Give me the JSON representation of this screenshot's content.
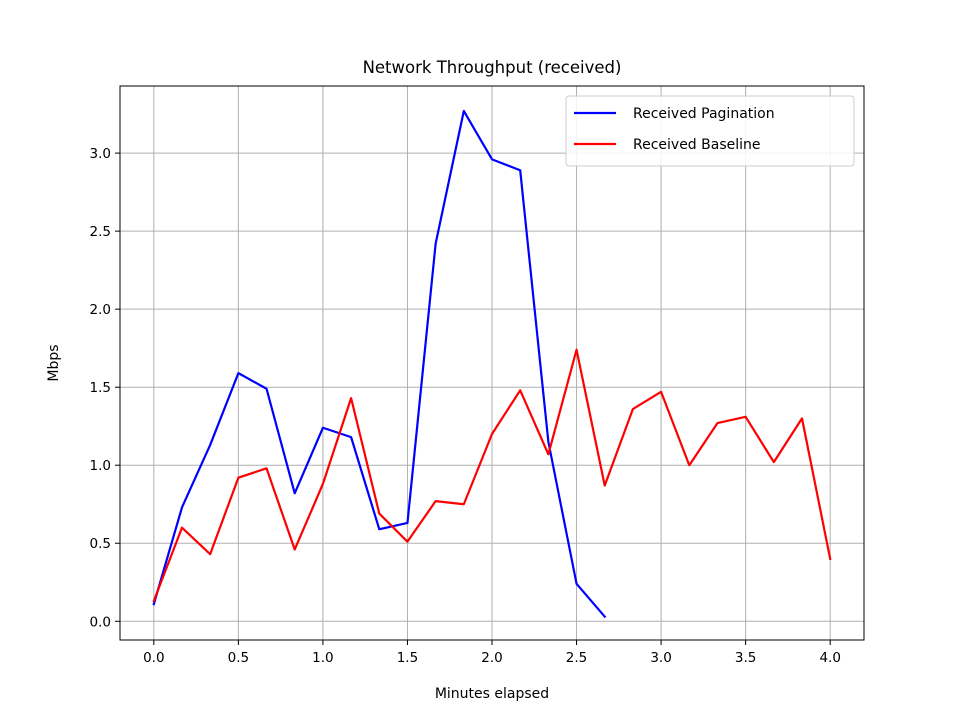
{
  "chart_data": {
    "type": "line",
    "title": "Network Throughput (received)",
    "xlabel": "Minutes elapsed",
    "ylabel": "Mbps",
    "xlim": [
      -0.2,
      4.2
    ],
    "ylim": [
      -0.12,
      3.43
    ],
    "xticks": [
      0.0,
      0.5,
      1.0,
      1.5,
      2.0,
      2.5,
      3.0,
      3.5,
      4.0
    ],
    "xtick_labels": [
      "0.0",
      "0.5",
      "1.0",
      "1.5",
      "2.0",
      "2.5",
      "3.0",
      "3.5",
      "4.0"
    ],
    "yticks": [
      0.0,
      0.5,
      1.0,
      1.5,
      2.0,
      2.5,
      3.0
    ],
    "ytick_labels": [
      "0.0",
      "0.5",
      "1.0",
      "1.5",
      "2.0",
      "2.5",
      "3.0"
    ],
    "grid": true,
    "legend_position": "upper right",
    "series": [
      {
        "name": "Received Pagination",
        "color": "#0000ff",
        "x": [
          0.0,
          0.1667,
          0.3333,
          0.5,
          0.6667,
          0.8333,
          1.0,
          1.1667,
          1.3333,
          1.5,
          1.6667,
          1.8333,
          2.0,
          2.1667,
          2.3333,
          2.5,
          2.6667
        ],
        "y": [
          0.11,
          0.73,
          1.13,
          1.59,
          1.49,
          0.82,
          1.24,
          1.18,
          0.59,
          0.63,
          2.42,
          3.27,
          2.96,
          2.89,
          1.15,
          0.24,
          0.03
        ]
      },
      {
        "name": "Received Baseline",
        "color": "#ff0000",
        "x": [
          0.0,
          0.1667,
          0.3333,
          0.5,
          0.6667,
          0.8333,
          1.0,
          1.1667,
          1.3333,
          1.5,
          1.6667,
          1.8333,
          2.0,
          2.1667,
          2.3333,
          2.5,
          2.6667,
          2.8333,
          3.0,
          3.1667,
          3.3333,
          3.5,
          3.6667,
          3.8333,
          4.0
        ],
        "y": [
          0.13,
          0.6,
          0.43,
          0.92,
          0.98,
          0.46,
          0.88,
          1.43,
          0.69,
          0.51,
          0.77,
          0.75,
          1.2,
          1.48,
          1.07,
          1.74,
          0.87,
          1.36,
          1.47,
          1.0,
          1.27,
          1.31,
          1.02,
          1.3,
          0.4
        ]
      }
    ]
  }
}
